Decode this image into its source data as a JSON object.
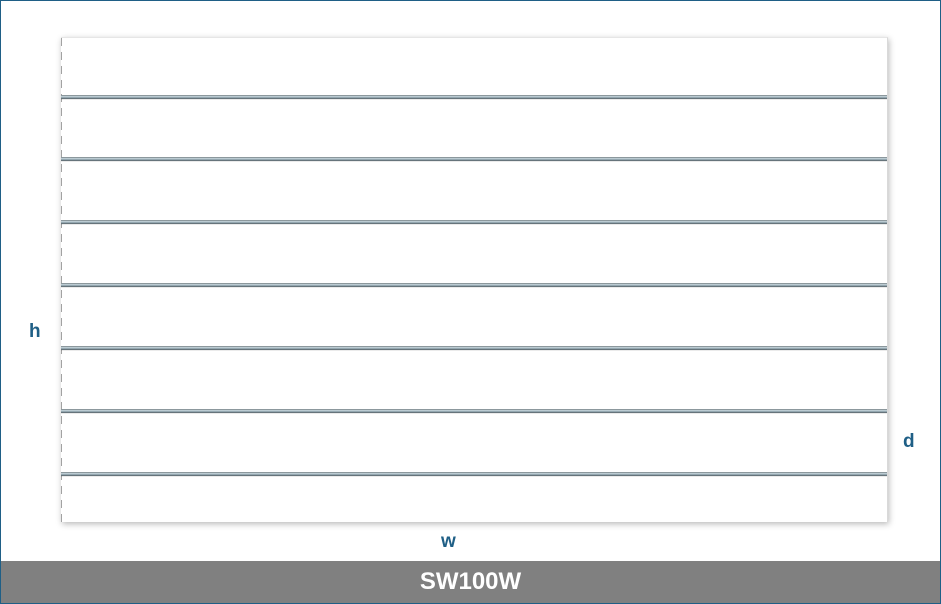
{
  "dimensions": {
    "height_label": "h",
    "depth_label": "d",
    "width_label": "w"
  },
  "product": {
    "code": "SW100W"
  },
  "slatwall": {
    "groove_count": 7,
    "panel_color": "#ffffff",
    "groove_color": "#8fa3ad"
  },
  "colors": {
    "accent": "#1f5f86",
    "footer_background": "#808080",
    "footer_text": "#ffffff"
  }
}
